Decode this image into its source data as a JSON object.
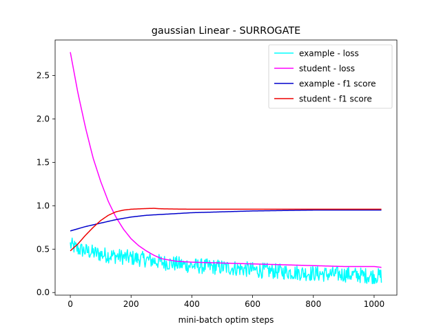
{
  "chart_data": {
    "type": "line",
    "title": "gaussian Linear - SURROGATE",
    "xlabel": "mini-batch optim steps",
    "ylabel": "",
    "xlim": [
      -50,
      1075
    ],
    "ylim": [
      -0.03,
      2.91
    ],
    "xticks": [
      0,
      200,
      400,
      600,
      800,
      1000
    ],
    "xtick_labels": [
      "0",
      "200",
      "400",
      "600",
      "800",
      "1000"
    ],
    "yticks": [
      0.0,
      0.5,
      1.0,
      1.5,
      2.0,
      2.5
    ],
    "ytick_labels": [
      "0.0",
      "0.5",
      "1.0",
      "1.5",
      "2.0",
      "2.5"
    ],
    "grid": false,
    "legend_position": "top-right",
    "series": [
      {
        "name": "example - loss",
        "color": "#00ffff",
        "x": [
          0,
          25,
          50,
          75,
          100,
          125,
          150,
          175,
          200,
          250,
          300,
          350,
          400,
          450,
          500,
          550,
          600,
          650,
          700,
          750,
          800,
          850,
          900,
          950,
          1000,
          1024
        ],
        "y": [
          0.55,
          0.5,
          0.48,
          0.46,
          0.44,
          0.43,
          0.42,
          0.41,
          0.4,
          0.38,
          0.35,
          0.33,
          0.31,
          0.3,
          0.29,
          0.28,
          0.26,
          0.25,
          0.24,
          0.23,
          0.22,
          0.21,
          0.21,
          0.2,
          0.19,
          0.19
        ],
        "noise": 0.09
      },
      {
        "name": "student - loss",
        "color": "#ff00ff",
        "x": [
          0,
          25,
          50,
          75,
          100,
          125,
          150,
          175,
          200,
          225,
          250,
          275,
          300,
          350,
          400,
          500,
          600,
          700,
          800,
          900,
          1000,
          1024
        ],
        "y": [
          2.77,
          2.3,
          1.9,
          1.55,
          1.28,
          1.05,
          0.87,
          0.73,
          0.62,
          0.54,
          0.48,
          0.43,
          0.39,
          0.36,
          0.35,
          0.34,
          0.33,
          0.32,
          0.31,
          0.3,
          0.3,
          0.29
        ]
      },
      {
        "name": "example - f1 score",
        "color": "#0000cc",
        "x": [
          0,
          50,
          100,
          150,
          200,
          250,
          300,
          350,
          400,
          500,
          600,
          700,
          800,
          900,
          1000,
          1024
        ],
        "y": [
          0.71,
          0.76,
          0.8,
          0.84,
          0.87,
          0.89,
          0.9,
          0.91,
          0.92,
          0.93,
          0.94,
          0.945,
          0.95,
          0.95,
          0.95,
          0.95
        ]
      },
      {
        "name": "student - f1 score",
        "color": "#ee0000",
        "x": [
          0,
          25,
          50,
          75,
          100,
          125,
          150,
          175,
          200,
          250,
          275,
          300,
          350,
          400,
          600,
          800,
          1000,
          1024
        ],
        "y": [
          0.48,
          0.56,
          0.66,
          0.75,
          0.83,
          0.89,
          0.93,
          0.95,
          0.96,
          0.968,
          0.97,
          0.965,
          0.962,
          0.96,
          0.96,
          0.96,
          0.96,
          0.96
        ]
      }
    ]
  }
}
